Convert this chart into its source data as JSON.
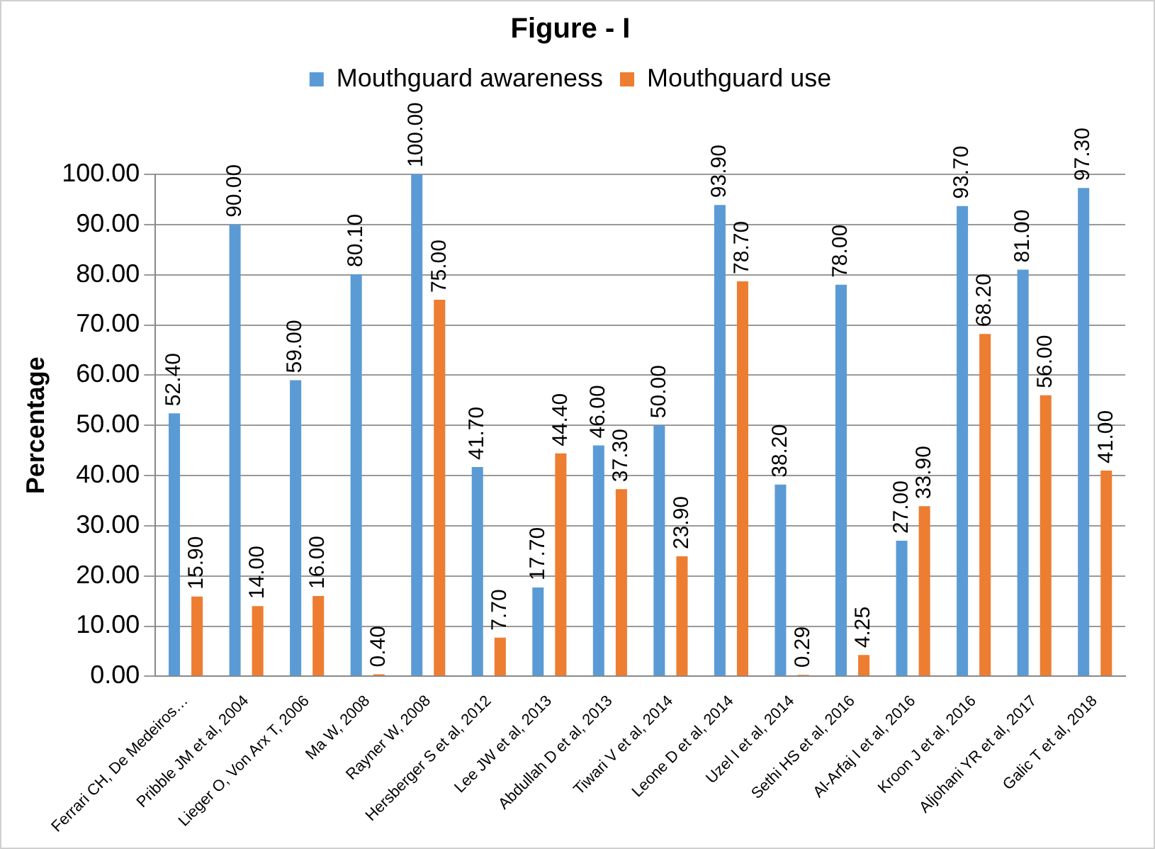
{
  "chart_data": {
    "type": "bar",
    "title": "Figure - I",
    "ylabel": "Percentage",
    "categories": [
      "Ferrari CH, De Medeiros…",
      "Pribble JM et al, 2004",
      "Lieger O, Von Arx T, 2006",
      "Ma W, 2008",
      "Rayner W, 2008",
      "Hersberger S et al, 2012",
      "Lee JW et al, 2013",
      "Abdullah D et al, 2013",
      "Tiwari V et al, 2014",
      "Leone D et al, 2014",
      "Uzel I et al, 2014",
      "Sethi HS et al, 2016",
      "Al-Arfaj I et al, 2016",
      "Kroon J et al, 2016",
      "Aljohani YR et al, 2017",
      "Galic T et al, 2018"
    ],
    "series": [
      {
        "name": "Mouthguard awareness",
        "color": "#5b9bd5",
        "values": [
          52.4,
          90,
          59,
          80.1,
          100,
          41.7,
          17.7,
          46,
          50,
          93.9,
          38.2,
          78,
          27,
          93.7,
          81,
          97.3
        ],
        "value_labels": [
          "52.40",
          "90.00",
          "59.00",
          "80.10",
          "100.00",
          "41.70",
          "17.70",
          "46.00",
          "50.00",
          "93.90",
          "38.20",
          "78.00",
          "27.00",
          "93.70",
          "81.00",
          "97.30"
        ]
      },
      {
        "name": "Mouthguard use",
        "color": "#ed7d31",
        "values": [
          15.9,
          14,
          16,
          0.4,
          75,
          7.7,
          44.4,
          37.3,
          23.9,
          78.7,
          0.29,
          4.25,
          33.9,
          68.2,
          56,
          41
        ],
        "value_labels": [
          "15.90",
          "14.00",
          "16.00",
          "0.40",
          "75.00",
          "7.70",
          "44.40",
          "37.30",
          "23.90",
          "78.70",
          "0.29",
          "4.25",
          "33.90",
          "68.20",
          "56.00",
          "41.00"
        ]
      }
    ],
    "ylim": [
      0,
      100
    ],
    "yticks": [
      {
        "value": 0,
        "label": "0.00"
      },
      {
        "value": 10,
        "label": "10.00"
      },
      {
        "value": 20,
        "label": "20.00"
      },
      {
        "value": 30,
        "label": "30.00"
      },
      {
        "value": 40,
        "label": "40.00"
      },
      {
        "value": 50,
        "label": "50.00"
      },
      {
        "value": 60,
        "label": "60.00"
      },
      {
        "value": 70,
        "label": "70.00"
      },
      {
        "value": 80,
        "label": "80.00"
      },
      {
        "value": 90,
        "label": "90.00"
      },
      {
        "value": 100,
        "label": "100.00"
      }
    ],
    "grid": "y",
    "legend": "top"
  }
}
